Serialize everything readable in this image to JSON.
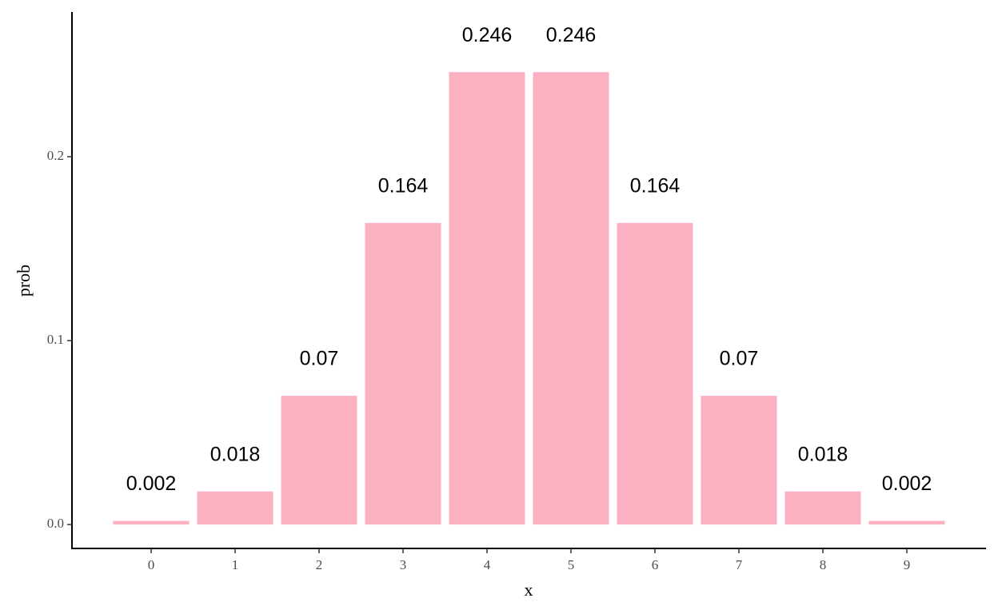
{
  "chart_data": {
    "type": "bar",
    "x_label": "x",
    "y_label": "prob",
    "categories": [
      "0",
      "1",
      "2",
      "3",
      "4",
      "5",
      "6",
      "7",
      "8",
      "9"
    ],
    "values": [
      0.002,
      0.018,
      0.07,
      0.164,
      0.246,
      0.246,
      0.164,
      0.07,
      0.018,
      0.002
    ],
    "color": "#fcb1c3",
    "ylim": [
      -0.013,
      0.2787
    ],
    "yticks": [
      {
        "value": 0,
        "label": "0.0"
      },
      0.1,
      0.2
    ],
    "grid": false
  }
}
